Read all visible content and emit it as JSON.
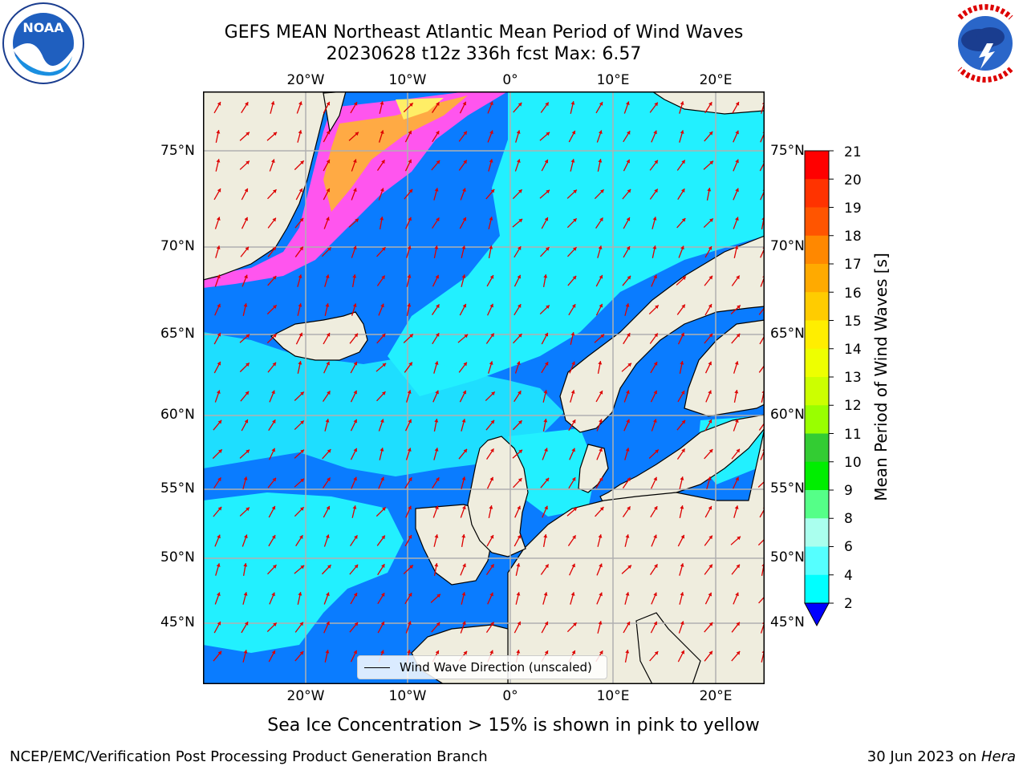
{
  "header": {
    "title_line1": "GEFS MEAN Northeast Atlantic Mean Period of Wind Waves",
    "title_line2": "20230628 t12z 336h fcst   Max: 6.57"
  },
  "logos": {
    "noaa": "NOAA",
    "noaa_ring": "NATIONAL OCEANIC AND ATMOSPHERIC ADMINISTRATION · U.S. DEPARTMENT OF COMMERCE",
    "nws_ring": "NATIONAL WEATHER SERVICE"
  },
  "axes": {
    "lon_top": [
      "20°W",
      "10°W",
      "0°",
      "10°E",
      "20°E"
    ],
    "lon_bottom": [
      "20°W",
      "10°W",
      "0°",
      "10°E",
      "20°E"
    ],
    "lat_left": [
      "75°N",
      "70°N",
      "65°N",
      "60°N",
      "55°N",
      "50°N",
      "45°N"
    ],
    "lat_right": [
      "75°N",
      "70°N",
      "65°N",
      "60°N",
      "55°N",
      "50°N",
      "45°N"
    ]
  },
  "colorbar": {
    "label": "Mean Period of Wind Waves [s]",
    "ticks": [
      "21",
      "20",
      "19",
      "18",
      "17",
      "16",
      "15",
      "14",
      "13",
      "12",
      "11",
      "10",
      "9",
      "8",
      "6",
      "4",
      "2"
    ],
    "colors": [
      "#ff0000",
      "#ff3300",
      "#ff5500",
      "#ff8800",
      "#ffaa00",
      "#ffcc00",
      "#ffee00",
      "#eeff00",
      "#ccff00",
      "#99ff00",
      "#33cc33",
      "#00ee00",
      "#55ff88",
      "#aaffee",
      "#55ffff",
      "#00ffff",
      "#0088ff"
    ],
    "extend_color": "#0000ff"
  },
  "legend": {
    "label": "Wind Wave Direction (unscaled)"
  },
  "map": {
    "colors": {
      "ocean_low": "#0a7cff",
      "ocean_mid": "#22f0ff",
      "land": "#efedde",
      "ice_pink": "#ff55ee",
      "ice_orange": "#ffaa44",
      "ice_yellow": "#ffee66",
      "arrow": "#dd0000",
      "grid": "#b0b0b0"
    }
  },
  "captions": {
    "sea_ice": "Sea Ice Concentration > 15% is shown in pink to yellow"
  },
  "footer": {
    "left": "NCEP/EMC/Verification Post Processing Product Generation Branch",
    "right_date": "30 Jun 2023 on ",
    "right_machine": "Hera"
  }
}
